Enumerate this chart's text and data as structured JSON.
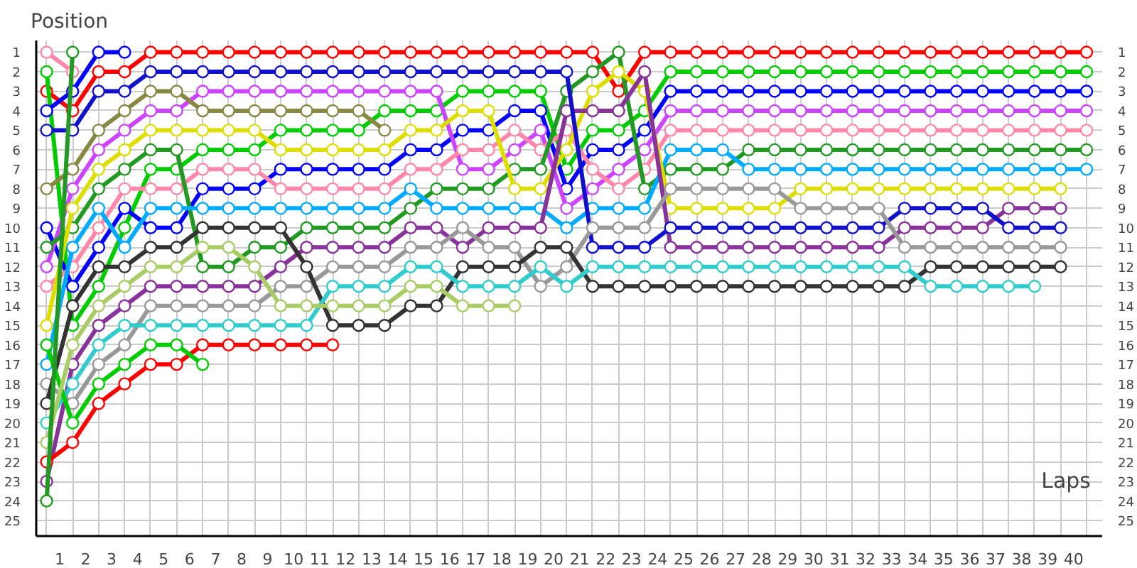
{
  "chart_data": {
    "type": "line",
    "xlabel": "Laps",
    "ylabel": "Position",
    "marker": "circle",
    "line_style": "solid",
    "grid": true,
    "x": [
      0,
      1,
      2,
      3,
      4,
      5,
      6,
      7,
      8,
      9,
      10,
      11,
      12,
      13,
      14,
      15,
      16,
      17,
      18,
      19,
      20,
      21,
      22,
      23,
      24,
      25,
      26,
      27,
      28,
      29,
      30,
      31,
      32,
      33,
      34,
      35,
      36,
      37,
      38,
      39,
      40
    ],
    "xlim": [
      -0.4,
      40.6
    ],
    "xticks": [
      {
        "value": 0.5,
        "label": "1"
      },
      {
        "value": 1.5,
        "label": "2"
      },
      {
        "value": 2.5,
        "label": "3"
      },
      {
        "value": 3.5,
        "label": "4"
      },
      {
        "value": 4.5,
        "label": "5"
      },
      {
        "value": 5.5,
        "label": "6"
      },
      {
        "value": 6.5,
        "label": "7"
      },
      {
        "value": 7.5,
        "label": "8"
      },
      {
        "value": 8.5,
        "label": "9"
      },
      {
        "value": 9.5,
        "label": "10"
      },
      {
        "value": 10.5,
        "label": "11"
      },
      {
        "value": 11.5,
        "label": "12"
      },
      {
        "value": 12.5,
        "label": "13"
      },
      {
        "value": 13.5,
        "label": "14"
      },
      {
        "value": 14.5,
        "label": "15"
      },
      {
        "value": 15.5,
        "label": "16"
      },
      {
        "value": 16.5,
        "label": "17"
      },
      {
        "value": 17.5,
        "label": "18"
      },
      {
        "value": 18.5,
        "label": "19"
      },
      {
        "value": 19.5,
        "label": "20"
      },
      {
        "value": 20.5,
        "label": "21"
      },
      {
        "value": 21.5,
        "label": "22"
      },
      {
        "value": 22.5,
        "label": "23"
      },
      {
        "value": 23.5,
        "label": "24"
      },
      {
        "value": 24.5,
        "label": "25"
      },
      {
        "value": 25.5,
        "label": "26"
      },
      {
        "value": 26.5,
        "label": "27"
      },
      {
        "value": 27.5,
        "label": "28"
      },
      {
        "value": 28.5,
        "label": "29"
      },
      {
        "value": 29.5,
        "label": "30"
      },
      {
        "value": 30.5,
        "label": "31"
      },
      {
        "value": 31.5,
        "label": "32"
      },
      {
        "value": 32.5,
        "label": "33"
      },
      {
        "value": 33.5,
        "label": "34"
      },
      {
        "value": 34.5,
        "label": "35"
      },
      {
        "value": 35.5,
        "label": "36"
      },
      {
        "value": 36.5,
        "label": "37"
      },
      {
        "value": 37.5,
        "label": "38"
      },
      {
        "value": 38.5,
        "label": "39"
      },
      {
        "value": 39.5,
        "label": "40"
      }
    ],
    "ylim": [
      25.8,
      0.4
    ],
    "yticks": [
      1,
      2,
      3,
      4,
      5,
      6,
      7,
      8,
      9,
      10,
      11,
      12,
      13,
      14,
      15,
      16,
      17,
      18,
      19,
      20,
      21,
      22,
      23,
      24,
      25
    ],
    "y2lim": [
      25.8,
      0.4
    ],
    "y2ticks": [
      1,
      2,
      3,
      4,
      5,
      6,
      7,
      8,
      9,
      10,
      11,
      12,
      13,
      14,
      15,
      16,
      17,
      18,
      19,
      20,
      21,
      22,
      23,
      24,
      25
    ],
    "series": [
      {
        "color": "#ff0000",
        "values": [
          3,
          4,
          2,
          2,
          1,
          1,
          1,
          1,
          1,
          1,
          1,
          1,
          1,
          1,
          1,
          1,
          1,
          1,
          1,
          1,
          1,
          1,
          3,
          1,
          1,
          1,
          1,
          1,
          1,
          1,
          1,
          1,
          1,
          1,
          1,
          1,
          1,
          1,
          1,
          1,
          1
        ]
      },
      {
        "color": "#00cc00",
        "values": [
          2,
          15,
          13,
          10,
          7,
          7,
          6,
          6,
          6,
          5,
          5,
          5,
          5,
          4,
          4,
          4,
          3,
          3,
          3,
          3,
          7,
          5,
          5,
          4,
          2,
          2,
          2,
          2,
          2,
          2,
          2,
          2,
          2,
          2,
          2,
          2,
          2,
          2,
          2,
          2,
          2
        ]
      },
      {
        "color": "#0000ff",
        "values": [
          10,
          13,
          11,
          9,
          10,
          10,
          8,
          8,
          8,
          7,
          7,
          7,
          7,
          7,
          6,
          6,
          5,
          5,
          4,
          4,
          8,
          6,
          6,
          5,
          3,
          3,
          3,
          3,
          3,
          3,
          3,
          3,
          3,
          3,
          3,
          3,
          3,
          3,
          3,
          3,
          3
        ]
      },
      {
        "color": "#cc44ff",
        "values": [
          12,
          8,
          6,
          5,
          4,
          4,
          3,
          3,
          3,
          3,
          3,
          3,
          3,
          3,
          3,
          3,
          7,
          7,
          6,
          5,
          9,
          8,
          7,
          6,
          4,
          4,
          4,
          4,
          4,
          4,
          4,
          4,
          4,
          4,
          4,
          4,
          4,
          4,
          4,
          4,
          4
        ]
      },
      {
        "color": "#ff88aa",
        "values": [
          13,
          12,
          10,
          8,
          8,
          8,
          7,
          7,
          7,
          8,
          8,
          8,
          8,
          8,
          7,
          7,
          6,
          6,
          5,
          6,
          5,
          7,
          8,
          7,
          5,
          5,
          5,
          5,
          5,
          5,
          5,
          5,
          5,
          5,
          5,
          5,
          5,
          5,
          5,
          5,
          5
        ]
      },
      {
        "color": "#229922",
        "values": [
          11,
          10,
          8,
          7,
          6,
          6,
          12,
          12,
          11,
          11,
          10,
          10,
          10,
          10,
          9,
          8,
          8,
          8,
          7,
          7,
          3,
          2,
          1,
          8,
          7,
          7,
          7,
          6,
          6,
          6,
          6,
          6,
          6,
          6,
          6,
          6,
          6,
          6,
          6,
          6,
          6
        ]
      },
      {
        "color": "#00aaff",
        "values": [
          17,
          11,
          9,
          11,
          9,
          9,
          9,
          9,
          9,
          9,
          9,
          9,
          9,
          9,
          8,
          9,
          9,
          9,
          9,
          9,
          10,
          9,
          9,
          9,
          6,
          6,
          6,
          7,
          7,
          7,
          7,
          7,
          7,
          7,
          7,
          7,
          7,
          7,
          7,
          7,
          7
        ]
      },
      {
        "color": "#dddd00",
        "x": [
          0,
          1,
          2,
          3,
          4,
          5,
          6,
          7,
          8,
          9,
          10,
          11,
          12,
          13,
          14,
          15,
          16,
          17,
          18,
          19,
          20,
          21,
          22,
          23,
          24,
          25,
          26,
          27,
          28,
          29,
          30,
          31,
          32,
          33,
          34,
          35,
          36,
          37,
          38,
          39
        ],
        "values": [
          15,
          9,
          7,
          6,
          5,
          5,
          5,
          5,
          5,
          6,
          6,
          6,
          6,
          6,
          5,
          5,
          4,
          4,
          8,
          8,
          6,
          3,
          2,
          3,
          9,
          9,
          9,
          9,
          9,
          8,
          8,
          8,
          8,
          8,
          8,
          8,
          8,
          8,
          8,
          8
        ]
      },
      {
        "color": "#883399",
        "x": [
          0,
          1,
          2,
          3,
          4,
          5,
          6,
          7,
          8,
          9,
          10,
          11,
          12,
          13,
          14,
          15,
          16,
          17,
          18,
          19,
          20,
          21,
          22,
          23,
          24,
          25,
          26,
          27,
          28,
          29,
          30,
          31,
          32,
          33,
          34,
          35,
          36,
          37,
          38,
          39
        ],
        "values": [
          23,
          17,
          15,
          14,
          13,
          13,
          13,
          13,
          13,
          12,
          11,
          11,
          11,
          11,
          10,
          10,
          11,
          10,
          10,
          10,
          4,
          4,
          4,
          2,
          11,
          11,
          11,
          11,
          11,
          11,
          11,
          11,
          11,
          10,
          10,
          10,
          10,
          9,
          9,
          9
        ]
      },
      {
        "color": "#1111cc",
        "x": [
          0,
          1,
          2,
          3,
          4,
          5,
          6,
          7,
          8,
          9,
          10,
          11,
          12,
          13,
          14,
          15,
          16,
          17,
          18,
          19,
          20,
          21,
          22,
          23,
          24,
          25,
          26,
          27,
          28,
          29,
          30,
          31,
          32,
          33,
          34,
          35,
          36,
          37,
          38,
          39
        ],
        "values": [
          5,
          5,
          3,
          3,
          2,
          2,
          2,
          2,
          2,
          2,
          2,
          2,
          2,
          2,
          2,
          2,
          2,
          2,
          2,
          2,
          2,
          11,
          11,
          11,
          10,
          10,
          10,
          10,
          10,
          10,
          10,
          10,
          10,
          9,
          9,
          9,
          9,
          10,
          10,
          10
        ]
      },
      {
        "color": "#999999",
        "x": [
          0,
          1,
          2,
          3,
          4,
          5,
          6,
          7,
          8,
          9,
          10,
          11,
          12,
          13,
          14,
          15,
          16,
          17,
          18,
          19,
          20,
          21,
          22,
          23,
          24,
          25,
          26,
          27,
          28,
          29,
          30,
          31,
          32,
          33,
          34,
          35,
          36,
          37,
          38,
          39
        ],
        "values": [
          18,
          19,
          17,
          16,
          14,
          14,
          14,
          14,
          14,
          13,
          13,
          12,
          12,
          12,
          11,
          11,
          10,
          11,
          11,
          13,
          12,
          10,
          10,
          10,
          8,
          8,
          8,
          8,
          8,
          9,
          9,
          9,
          9,
          11,
          11,
          11,
          11,
          11,
          11,
          11
        ]
      },
      {
        "color": "#333333",
        "x": [
          0,
          1,
          2,
          3,
          4,
          5,
          6,
          7,
          8,
          9,
          10,
          11,
          12,
          13,
          14,
          15,
          16,
          17,
          18,
          19,
          20,
          21,
          22,
          23,
          24,
          25,
          26,
          27,
          28,
          29,
          30,
          31,
          32,
          33,
          34,
          35,
          36,
          37,
          38,
          39
        ],
        "values": [
          19,
          14,
          12,
          12,
          11,
          11,
          10,
          10,
          10,
          10,
          12,
          15,
          15,
          15,
          14,
          14,
          12,
          12,
          12,
          11,
          11,
          13,
          13,
          13,
          13,
          13,
          13,
          13,
          13,
          13,
          13,
          13,
          13,
          13,
          12,
          12,
          12,
          12,
          12,
          12
        ]
      },
      {
        "color": "#33cccc",
        "x": [
          0,
          1,
          2,
          3,
          4,
          5,
          6,
          7,
          8,
          9,
          10,
          11,
          12,
          13,
          14,
          15,
          16,
          17,
          18,
          19,
          20,
          21,
          22,
          23,
          24,
          25,
          26,
          27,
          28,
          29,
          30,
          31,
          32,
          33,
          34,
          35,
          36,
          37,
          38
        ],
        "values": [
          20,
          18,
          16,
          15,
          15,
          15,
          15,
          15,
          15,
          15,
          15,
          13,
          13,
          13,
          12,
          12,
          13,
          13,
          13,
          12,
          13,
          12,
          12,
          12,
          12,
          12,
          12,
          12,
          12,
          12,
          12,
          12,
          12,
          12,
          13,
          13,
          13,
          13,
          13
        ]
      },
      {
        "color": "#ff0000",
        "x": [
          0,
          1,
          2,
          3,
          4,
          5,
          6,
          7,
          8,
          9,
          10,
          11
        ],
        "values": [
          22,
          21,
          19,
          18,
          17,
          17,
          16,
          16,
          16,
          16,
          16,
          16
        ]
      },
      {
        "color": "#00cc00",
        "x": [
          0,
          1,
          2,
          3,
          4,
          5,
          6
        ],
        "values": [
          16,
          20,
          18,
          17,
          16,
          16,
          17
        ]
      },
      {
        "color": "#888844",
        "x": [
          0,
          1,
          2,
          3,
          4,
          5,
          6,
          7,
          8,
          9,
          10,
          11,
          12,
          13
        ],
        "values": [
          8,
          7,
          5,
          4,
          3,
          3,
          4,
          4,
          4,
          4,
          4,
          4,
          4,
          5
        ]
      },
      {
        "color": "#aacc66",
        "x": [
          0,
          1,
          2,
          3,
          4,
          5,
          6,
          7,
          8,
          9,
          10,
          11,
          12,
          13,
          14,
          15,
          16,
          17,
          18
        ],
        "values": [
          21,
          16,
          14,
          13,
          12,
          12,
          11,
          11,
          12,
          14,
          14,
          14,
          14,
          14,
          13,
          13,
          14,
          14,
          14
        ]
      },
      {
        "color": "#ff88aa",
        "x": [
          0,
          1
        ],
        "values": [
          1,
          2
        ]
      },
      {
        "color": "#0000ff",
        "x": [
          0,
          1,
          2,
          3
        ],
        "values": [
          4,
          3,
          1,
          1
        ]
      },
      {
        "color": "#229922",
        "x": [
          0,
          1
        ],
        "values": [
          24,
          1
        ]
      }
    ]
  }
}
